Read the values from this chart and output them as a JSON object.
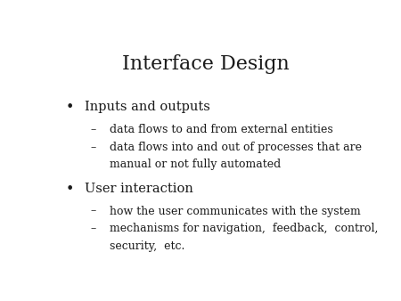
{
  "title": "Interface Design",
  "background_color": "#ffffff",
  "text_color": "#1a1a1a",
  "title_fontsize": 16,
  "title_font": "serif",
  "bullet_fontsize": 10.5,
  "sub_fontsize": 9.0,
  "bullet_points": [
    {
      "bullet": "Inputs and outputs",
      "subs": [
        "data flows to and from external entities",
        "data flows into and out of processes that are\nmanual or not fully automated"
      ]
    },
    {
      "bullet": "User interaction",
      "subs": [
        "how the user communicates with the system",
        "mechanisms for navigation,  feedback,  control,\nsecurity,  etc."
      ]
    }
  ]
}
